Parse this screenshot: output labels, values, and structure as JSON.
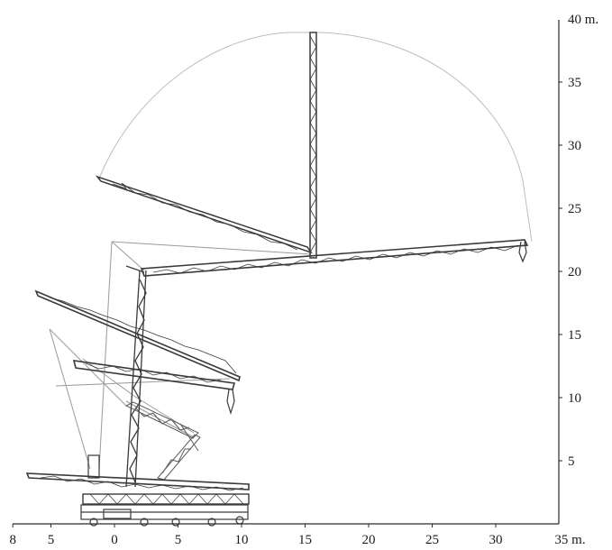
{
  "diagram": {
    "x_axis": {
      "ticks": [
        {
          "label": "8",
          "x": -8
        },
        {
          "label": "5",
          "x": -5
        },
        {
          "label": "0",
          "x": 0
        },
        {
          "label": "5",
          "x": 5
        },
        {
          "label": "10",
          "x": 10
        },
        {
          "label": "15",
          "x": 15
        },
        {
          "label": "20",
          "x": 20
        },
        {
          "label": "25",
          "x": 25
        },
        {
          "label": "30",
          "x": 30
        }
      ],
      "unit_label": "35 m.",
      "unit_value": 35
    },
    "y_axis": {
      "ticks": [
        {
          "label": "5",
          "y": 5
        },
        {
          "label": "10",
          "y": 10
        },
        {
          "label": "15",
          "y": 15
        },
        {
          "label": "20",
          "y": 20
        },
        {
          "label": "25",
          "y": 25
        },
        {
          "label": "30",
          "y": 30
        },
        {
          "label": "35",
          "y": 35
        }
      ],
      "unit_label": "40 m.",
      "unit_value": 40
    },
    "colors": {
      "lattice": "#3a3a3a",
      "rigging": "#9a9a9a",
      "arc": "#bdbdbd"
    },
    "boom_positions": [
      {
        "name": "working-radius-arc"
      },
      {
        "name": "boom-vertical"
      },
      {
        "name": "boom-raised-left"
      },
      {
        "name": "boom-horizontal-high"
      },
      {
        "name": "boom-upper-inclined"
      },
      {
        "name": "boom-mid-inclined"
      },
      {
        "name": "boom-folded-base"
      }
    ]
  }
}
